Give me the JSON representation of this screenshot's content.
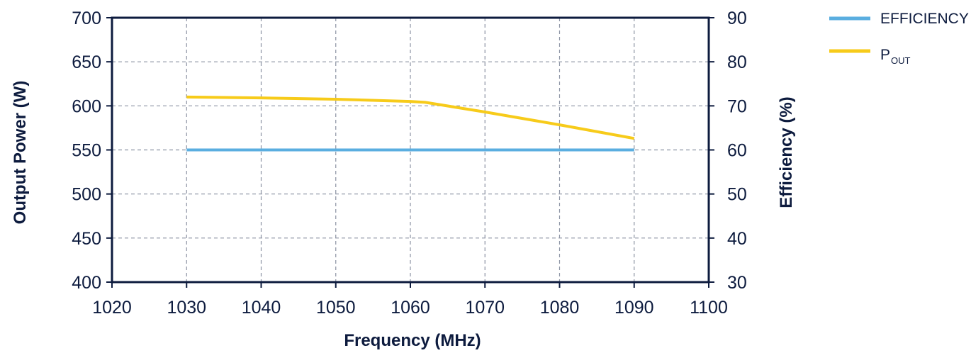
{
  "chart_data": {
    "type": "line",
    "xlabel": "Frequency (MHz)",
    "ylabel_left": "Output Power (W)",
    "ylabel_right": "Efficiency (%)",
    "xlim": [
      1020,
      1100
    ],
    "xticks": [
      1020,
      1030,
      1040,
      1050,
      1060,
      1070,
      1080,
      1090,
      1100
    ],
    "ylim_left": [
      400,
      700
    ],
    "yticks_left": [
      400,
      450,
      500,
      550,
      600,
      650,
      700
    ],
    "ylim_right": [
      30,
      90
    ],
    "yticks_right": [
      30,
      40,
      50,
      60,
      70,
      80,
      90
    ],
    "grid": true,
    "legend_position": "top-right",
    "series": [
      {
        "name": "EFFICIENCY",
        "axis": "right",
        "color": "#5aaee0",
        "x": [
          1030,
          1040,
          1050,
          1060,
          1070,
          1080,
          1090
        ],
        "y": [
          60,
          60,
          60,
          60,
          60,
          60,
          60
        ]
      },
      {
        "name": "P",
        "name_subscript": "OUT",
        "axis": "left",
        "color": "#f7cb1a",
        "x": [
          1030,
          1040,
          1050,
          1060,
          1062,
          1070,
          1080,
          1090
        ],
        "y": [
          610,
          609,
          607.5,
          605,
          604,
          593,
          578.5,
          563
        ]
      }
    ]
  }
}
